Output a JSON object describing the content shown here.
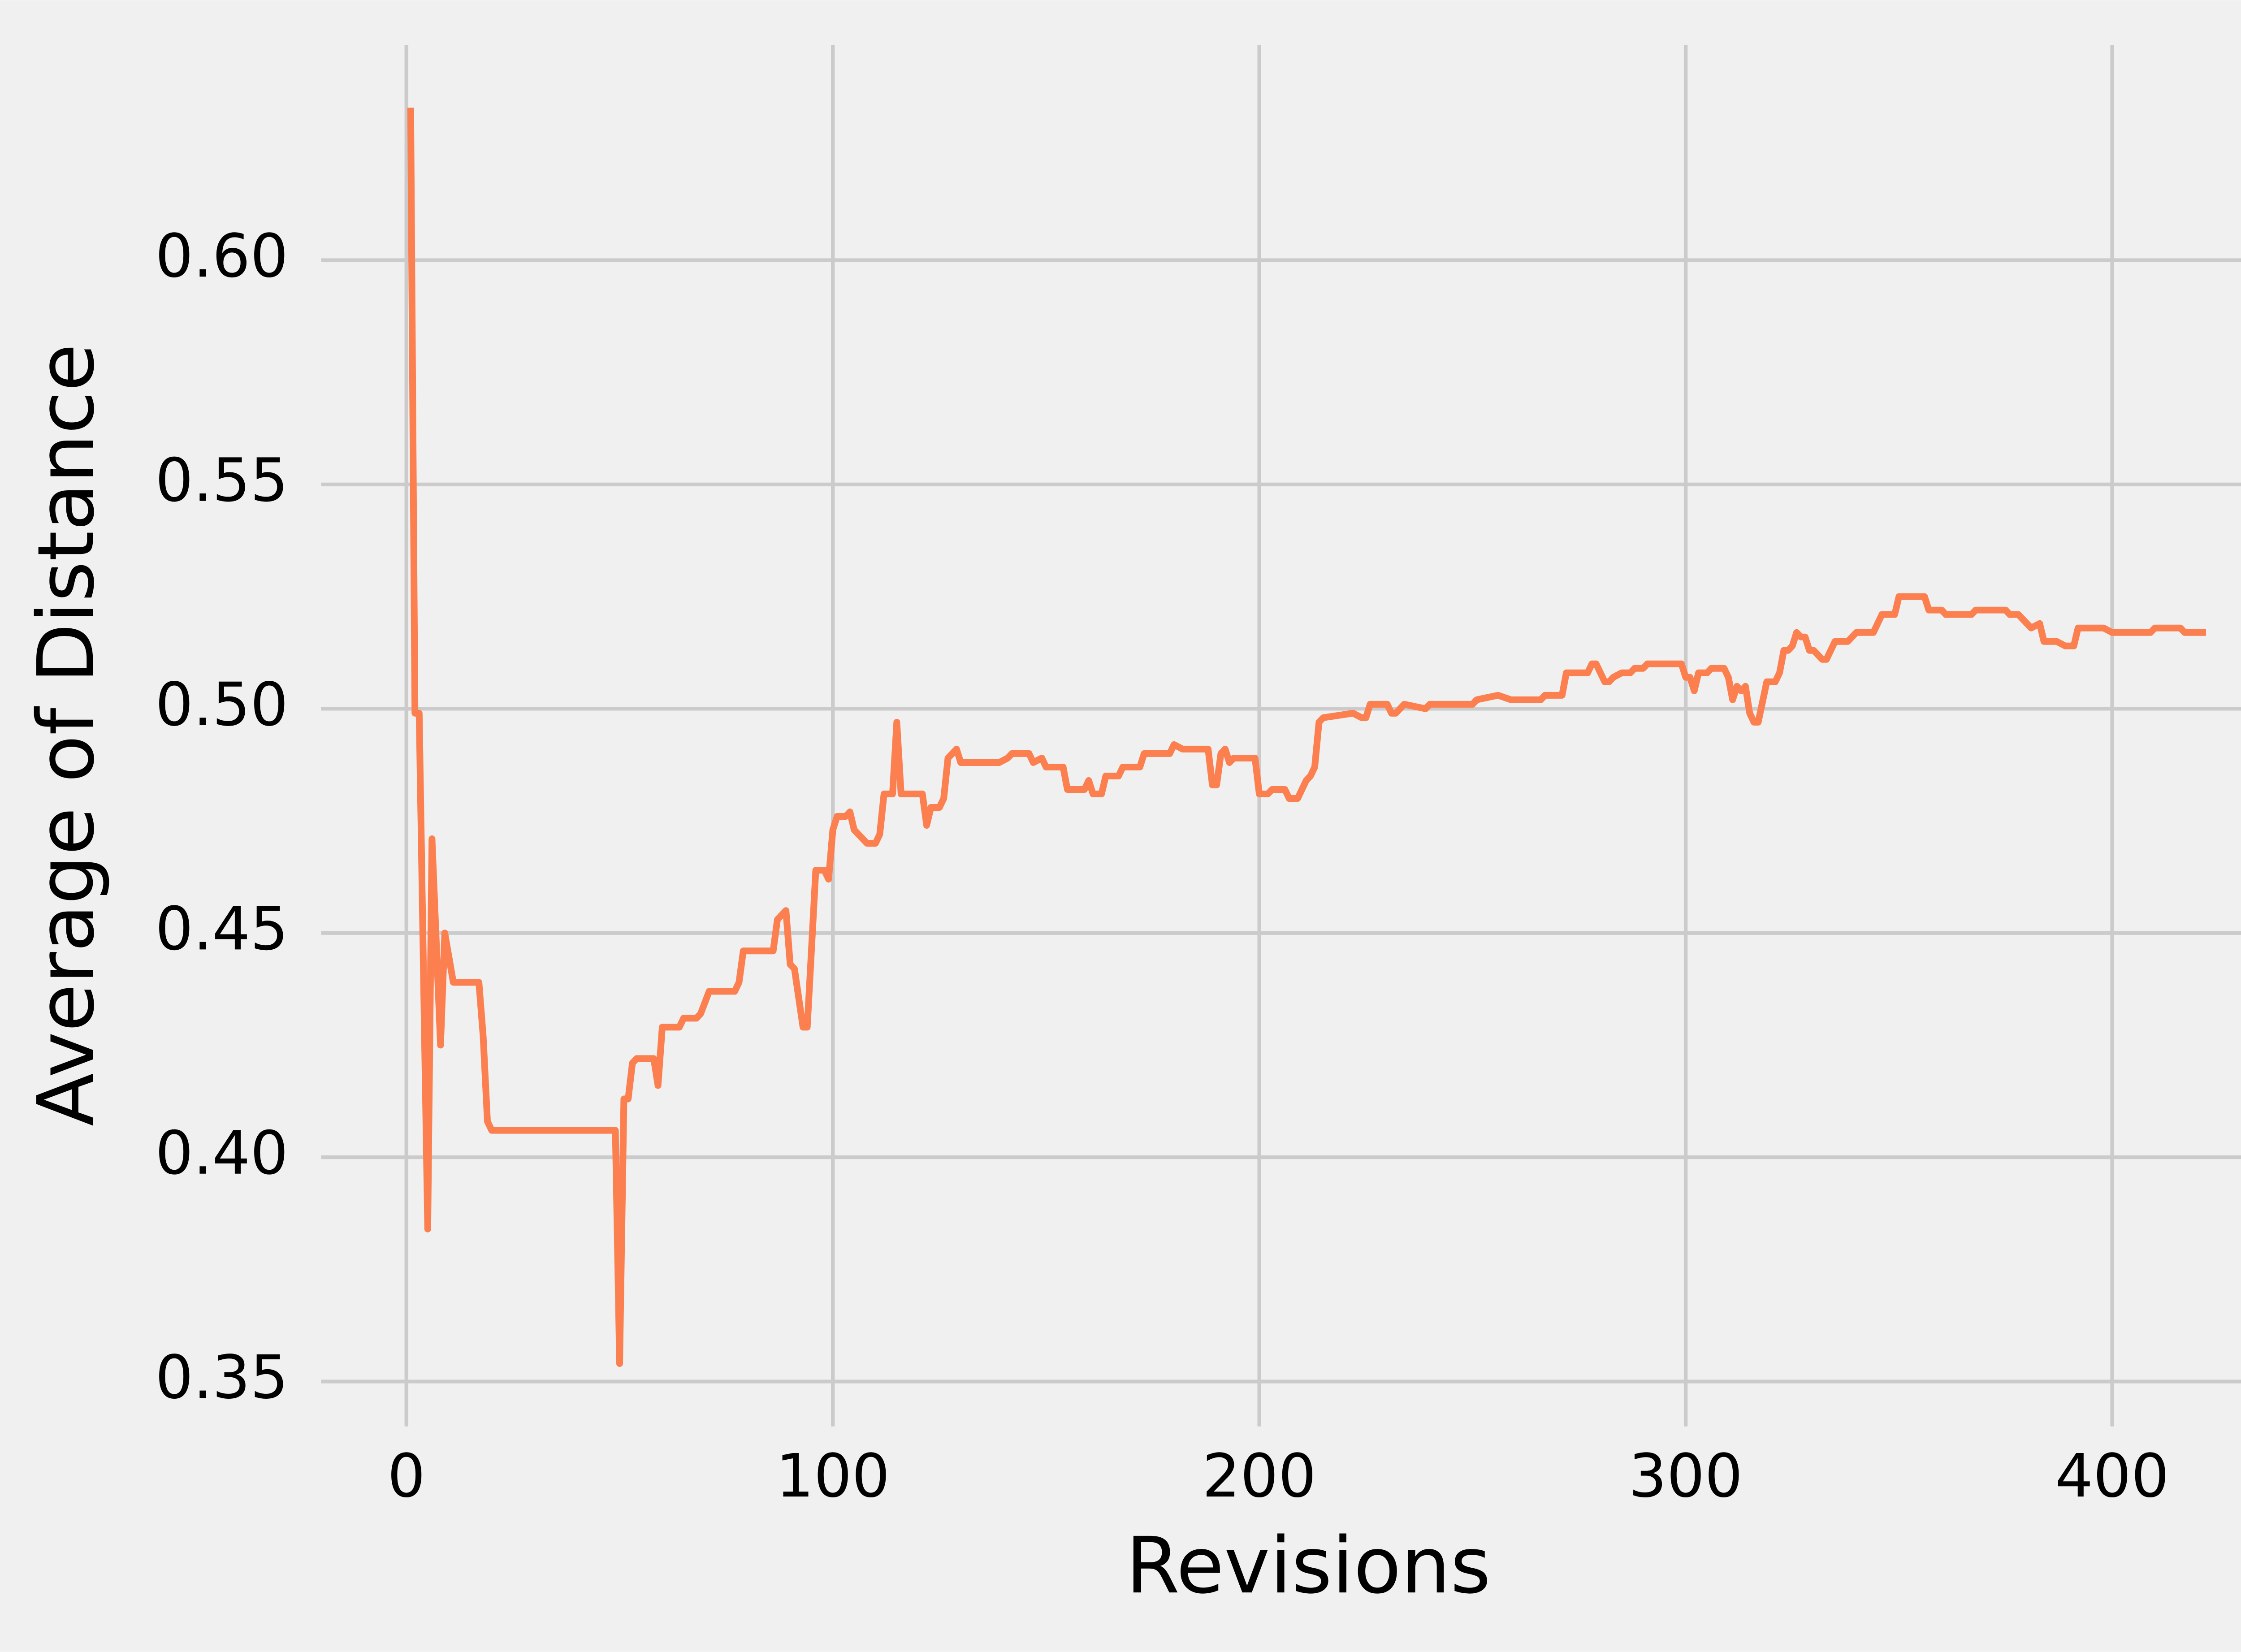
{
  "chart_data": {
    "type": "line",
    "xlabel": "Revisions",
    "ylabel": "Average of Distance",
    "color": "#fc7f4f",
    "background": "#f0f0f0",
    "grid": true,
    "grid_color": "#cbcbcb",
    "xlim": [
      -20,
      443
    ],
    "ylim": [
      0.34,
      0.648
    ],
    "xticks": [
      0,
      100,
      200,
      300,
      400
    ],
    "yticks": [
      0.35,
      {
        "value": 0.4,
        "label": "0.40"
      },
      0.45,
      {
        "value": 0.5,
        "label": "0.50"
      },
      0.55,
      {
        "value": 0.6,
        "label": "0.60"
      }
    ],
    "x": [
      1,
      2,
      3,
      5,
      6,
      8,
      9,
      11,
      17,
      18,
      19,
      20,
      49,
      50,
      51,
      52,
      53,
      54,
      58,
      59,
      60,
      64,
      65,
      68,
      69,
      71,
      77,
      78,
      79,
      86,
      87,
      88,
      89,
      90,
      91,
      93,
      94,
      96,
      98,
      99,
      100,
      101,
      103,
      104,
      105,
      107,
      108,
      110,
      111,
      112,
      114,
      115,
      116,
      121,
      122,
      123,
      125,
      126,
      127,
      128,
      129,
      130,
      139,
      141,
      142,
      146,
      147,
      149,
      150,
      154,
      155,
      159,
      160,
      161,
      163,
      164,
      167,
      168,
      172,
      173,
      179,
      180,
      182,
      188,
      189,
      190,
      191,
      192,
      193,
      194,
      199,
      200,
      202,
      203,
      206,
      207,
      209,
      210,
      211,
      212,
      213,
      214,
      215,
      222,
      224,
      225,
      226,
      230,
      231,
      232,
      234,
      239,
      240,
      250,
      251,
      256,
      259,
      260,
      266,
      267,
      271,
      272,
      277,
      278,
      279,
      281,
      282,
      283,
      285,
      287,
      288,
      290,
      291,
      299,
      300,
      301,
      302,
      303,
      305,
      306,
      309,
      310,
      311,
      312,
      313,
      314,
      315,
      316,
      317,
      319,
      321,
      322,
      323,
      324,
      325,
      326,
      327,
      328,
      329,
      330,
      332,
      333,
      335,
      338,
      340,
      342,
      344,
      346,
      348,
      349,
      350,
      356,
      357,
      360,
      361,
      367,
      368,
      370,
      371,
      375,
      376,
      378,
      379,
      381,
      383,
      384,
      386,
      387,
      389,
      391,
      392,
      398,
      400,
      409,
      410,
      416,
      417,
      422
    ],
    "values": [
      0.634,
      0.499,
      0.499,
      0.384,
      0.471,
      0.425,
      0.45,
      0.439,
      0.439,
      0.427,
      0.408,
      0.406,
      0.406,
      0.354,
      0.413,
      0.413,
      0.421,
      0.422,
      0.422,
      0.416,
      0.429,
      0.429,
      0.431,
      0.431,
      0.432,
      0.437,
      0.437,
      0.439,
      0.446,
      0.446,
      0.453,
      0.454,
      0.455,
      0.443,
      0.442,
      0.429,
      0.429,
      0.464,
      0.464,
      0.462,
      0.473,
      0.476,
      0.476,
      0.477,
      0.473,
      0.471,
      0.47,
      0.47,
      0.472,
      0.481,
      0.481,
      0.497,
      0.481,
      0.481,
      0.474,
      0.478,
      0.478,
      0.48,
      0.489,
      0.49,
      0.491,
      0.488,
      0.488,
      0.489,
      0.49,
      0.49,
      0.488,
      0.489,
      0.487,
      0.487,
      0.482,
      0.482,
      0.484,
      0.481,
      0.481,
      0.485,
      0.485,
      0.487,
      0.487,
      0.49,
      0.49,
      0.492,
      0.491,
      0.491,
      0.483,
      0.483,
      0.49,
      0.491,
      0.488,
      0.489,
      0.489,
      0.481,
      0.481,
      0.482,
      0.482,
      0.48,
      0.48,
      0.482,
      0.484,
      0.485,
      0.487,
      0.497,
      0.498,
      0.499,
      0.498,
      0.498,
      0.501,
      0.501,
      0.499,
      0.499,
      0.501,
      0.5,
      0.501,
      0.501,
      0.502,
      0.503,
      0.502,
      0.502,
      0.502,
      0.503,
      0.503,
      0.508,
      0.508,
      0.51,
      0.51,
      0.506,
      0.506,
      0.507,
      0.508,
      0.508,
      0.509,
      0.509,
      0.51,
      0.51,
      0.507,
      0.507,
      0.504,
      0.508,
      0.508,
      0.509,
      0.509,
      0.507,
      0.502,
      0.505,
      0.504,
      0.505,
      0.499,
      0.497,
      0.497,
      0.506,
      0.506,
      0.508,
      0.513,
      0.513,
      0.514,
      0.517,
      0.516,
      0.516,
      0.513,
      0.513,
      0.511,
      0.511,
      0.515,
      0.515,
      0.517,
      0.517,
      0.517,
      0.521,
      0.521,
      0.521,
      0.525,
      0.525,
      0.522,
      0.522,
      0.521,
      0.521,
      0.522,
      0.522,
      0.522,
      0.522,
      0.521,
      0.521,
      0.52,
      0.518,
      0.519,
      0.515,
      0.515,
      0.515,
      0.514,
      0.514,
      0.518,
      0.518,
      0.517,
      0.517,
      0.518,
      0.518,
      0.517,
      0.517
    ]
  }
}
